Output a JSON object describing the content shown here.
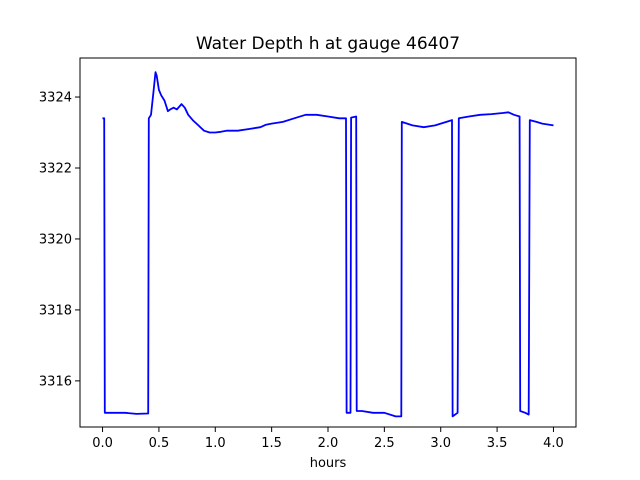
{
  "chart_data": {
    "type": "line",
    "title": "Water Depth h at gauge 46407",
    "xlabel": "hours",
    "ylabel": "",
    "xlim": [
      -0.2,
      4.2
    ],
    "ylim": [
      3314.7,
      3325.1
    ],
    "xticks": [
      0.0,
      0.5,
      1.0,
      1.5,
      2.0,
      2.5,
      3.0,
      3.5,
      4.0
    ],
    "xtick_labels": [
      "0.0",
      "0.5",
      "1.0",
      "1.5",
      "2.0",
      "2.5",
      "3.0",
      "3.5",
      "4.0"
    ],
    "yticks": [
      3316,
      3318,
      3320,
      3322,
      3324
    ],
    "ytick_labels": [
      "3316",
      "3318",
      "3320",
      "3322",
      "3324"
    ],
    "grid": false,
    "series": [
      {
        "color": "#0000ff",
        "x": [
          0.0,
          0.015,
          0.02,
          0.1,
          0.2,
          0.3,
          0.405,
          0.41,
          0.43,
          0.45,
          0.47,
          0.48,
          0.5,
          0.52,
          0.55,
          0.58,
          0.6,
          0.63,
          0.66,
          0.7,
          0.73,
          0.76,
          0.8,
          0.85,
          0.9,
          0.95,
          1.0,
          1.05,
          1.1,
          1.2,
          1.3,
          1.4,
          1.45,
          1.5,
          1.6,
          1.7,
          1.8,
          1.9,
          2.0,
          2.1,
          2.16,
          2.165,
          2.2,
          2.205,
          2.25,
          2.255,
          2.3,
          2.4,
          2.5,
          2.6,
          2.65,
          2.655,
          2.75,
          2.85,
          2.95,
          3.05,
          3.1,
          3.105,
          3.15,
          3.16,
          3.25,
          3.35,
          3.45,
          3.55,
          3.6,
          3.65,
          3.7,
          3.705,
          3.75,
          3.78,
          3.79,
          3.85,
          3.9,
          4.0
        ],
        "y": [
          3323.4,
          3323.4,
          3315.1,
          3315.1,
          3315.1,
          3315.07,
          3315.08,
          3323.4,
          3323.5,
          3324.1,
          3324.7,
          3324.6,
          3324.2,
          3324.05,
          3323.9,
          3323.6,
          3323.65,
          3323.7,
          3323.65,
          3323.8,
          3323.7,
          3323.5,
          3323.35,
          3323.2,
          3323.05,
          3323.0,
          3323.0,
          3323.02,
          3323.05,
          3323.05,
          3323.1,
          3323.15,
          3323.22,
          3323.25,
          3323.3,
          3323.4,
          3323.5,
          3323.5,
          3323.45,
          3323.4,
          3323.4,
          3315.1,
          3315.1,
          3323.42,
          3323.45,
          3315.15,
          3315.15,
          3315.1,
          3315.1,
          3315.0,
          3315.0,
          3323.3,
          3323.2,
          3323.15,
          3323.2,
          3323.3,
          3323.35,
          3315.0,
          3315.1,
          3323.4,
          3323.45,
          3323.5,
          3323.52,
          3323.55,
          3323.57,
          3323.5,
          3323.45,
          3315.15,
          3315.1,
          3315.05,
          3323.35,
          3323.3,
          3323.25,
          3323.2
        ]
      }
    ]
  }
}
